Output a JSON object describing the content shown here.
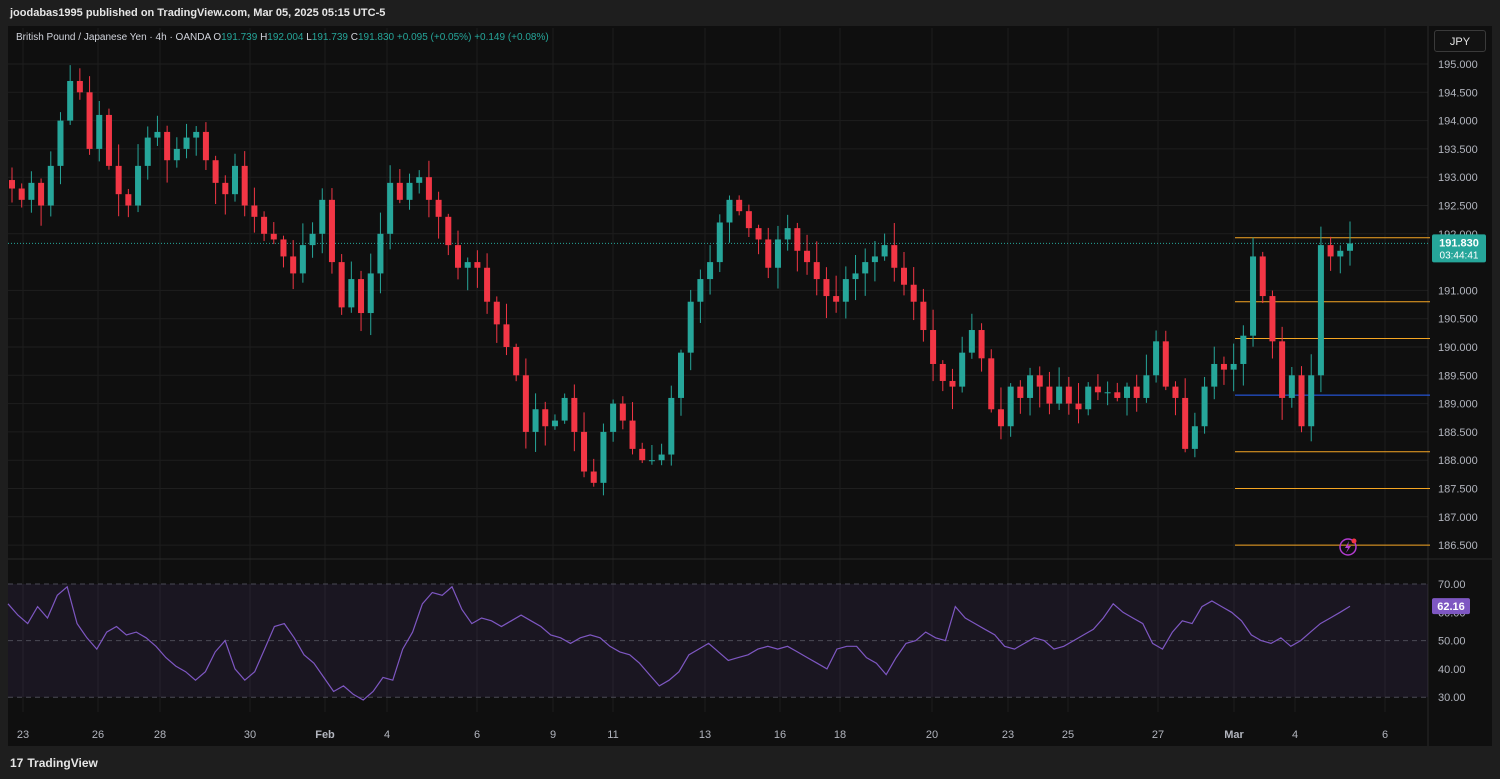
{
  "header": {
    "published_text": "joodabas1995 published on TradingView.com, Mar 05, 2025 05:15 UTC-5"
  },
  "legend": {
    "symbol": "British Pound / Japanese Yen · 4h · OANDA",
    "open_label": "O",
    "open": "191.739",
    "high_label": "H",
    "high": "192.004",
    "low_label": "L",
    "low": "191.739",
    "close_label": "C",
    "close": "191.830",
    "change": "+0.095 (+0.05%)",
    "change2": "+0.149 (+0.08%)"
  },
  "currency_button": "JPY",
  "price_badge": {
    "price": "191.830",
    "countdown": "03:44:41"
  },
  "rsi_badge": "62.16",
  "footer": {
    "brand": "TradingView",
    "logo": "17"
  },
  "colors": {
    "up": "#26a69a",
    "down": "#f23645",
    "rsi": "#7e57c2",
    "level": "#f5a623",
    "blue_level": "#2962ff"
  },
  "chart_data": [
    {
      "type": "candlestick",
      "title": "British Pound / Japanese Yen · 4h · OANDA",
      "y_ticks": [
        "195.000",
        "194.500",
        "194.000",
        "193.500",
        "193.000",
        "192.500",
        "192.000",
        "191.000",
        "190.500",
        "190.000",
        "189.500",
        "189.000",
        "188.500",
        "188.000",
        "187.500",
        "187.000",
        "186.500"
      ],
      "x_ticks": [
        "23",
        "26",
        "28",
        "30",
        "Feb",
        "4",
        "6",
        "9",
        "11",
        "13",
        "16",
        "18",
        "20",
        "23",
        "25",
        "27",
        "Mar",
        "4",
        "6"
      ],
      "ylim": [
        186.3,
        195.4
      ],
      "last_price": 191.83,
      "horizontal_levels": [
        190.8,
        190.15,
        188.15,
        187.5,
        186.5
      ],
      "blue_level": 189.15,
      "grid": true,
      "close_path": [
        192.8,
        192.6,
        192.9,
        192.5,
        193.2,
        194.0,
        194.7,
        194.5,
        193.5,
        194.1,
        193.2,
        192.7,
        192.5,
        193.2,
        193.7,
        193.8,
        193.3,
        193.5,
        193.7,
        193.8,
        193.3,
        192.9,
        192.7,
        193.2,
        192.5,
        192.3,
        192.0,
        191.9,
        191.6,
        191.3,
        191.8,
        192.0,
        192.6,
        191.5,
        190.7,
        191.2,
        190.6,
        191.3,
        192.0,
        192.9,
        192.6,
        192.9,
        193.0,
        192.6,
        192.3,
        191.8,
        191.4,
        191.5,
        191.4,
        190.8,
        190.4,
        190.0,
        189.5,
        188.5,
        188.9,
        188.6,
        188.7,
        189.1,
        188.5,
        187.8,
        187.6,
        188.5,
        189.0,
        188.7,
        188.2,
        188.0,
        188.0,
        188.1,
        189.1,
        189.9,
        190.8,
        191.2,
        191.5,
        192.2,
        192.6,
        192.4,
        192.1,
        191.9,
        191.4,
        191.9,
        192.1,
        191.7,
        191.5,
        191.2,
        190.9,
        190.8,
        191.2,
        191.3,
        191.5,
        191.6,
        191.8,
        191.4,
        191.1,
        190.8,
        190.3,
        189.7,
        189.4,
        189.3,
        189.9,
        190.3,
        189.8,
        188.9,
        188.6,
        189.3,
        189.1,
        189.5,
        189.3,
        189.0,
        189.3,
        189.0,
        188.9,
        189.3,
        189.2,
        189.2,
        189.1,
        189.3,
        189.1,
        189.5,
        190.1,
        189.3,
        189.1,
        188.2,
        188.6,
        189.3,
        189.7,
        189.6,
        189.7,
        190.2,
        191.6,
        190.9,
        190.1,
        189.1,
        189.5,
        188.6,
        189.5,
        191.8,
        191.6,
        191.7,
        191.83
      ]
    },
    {
      "type": "line",
      "title": "RSI",
      "y_ticks": [
        "70.00",
        "60.00",
        "50.00",
        "40.00",
        "30.00"
      ],
      "ylim": [
        26,
        74
      ],
      "band": [
        30,
        70
      ],
      "midline": 50,
      "last_value": 62.16,
      "values": [
        63,
        59,
        56,
        62,
        58,
        66,
        69,
        56,
        51,
        47,
        53,
        55,
        52,
        53,
        51,
        48,
        44,
        41,
        39,
        36,
        39,
        46,
        50,
        40,
        36,
        39,
        47,
        55,
        56,
        51,
        45,
        42,
        37,
        32,
        34,
        31,
        29,
        32,
        37,
        36,
        47,
        53,
        63,
        67,
        66,
        69,
        61,
        56,
        58,
        57,
        55,
        57,
        59,
        57,
        55,
        52,
        51,
        49,
        51,
        52,
        51,
        48,
        46,
        45,
        42,
        38,
        34,
        36,
        39,
        45,
        47,
        49,
        46,
        43,
        44,
        45,
        47,
        48,
        47,
        48,
        46,
        44,
        42,
        40,
        47,
        48,
        48,
        44,
        42,
        38,
        44,
        49,
        50,
        53,
        51,
        50,
        62,
        58,
        56,
        54,
        52,
        48,
        47,
        49,
        51,
        50,
        47,
        48,
        50,
        52,
        54,
        58,
        63,
        60,
        58,
        56,
        49,
        47,
        53,
        57,
        56,
        62,
        64,
        62,
        60,
        57,
        52,
        50,
        49,
        51,
        48,
        50,
        53,
        56,
        58,
        60,
        62.16
      ]
    }
  ]
}
